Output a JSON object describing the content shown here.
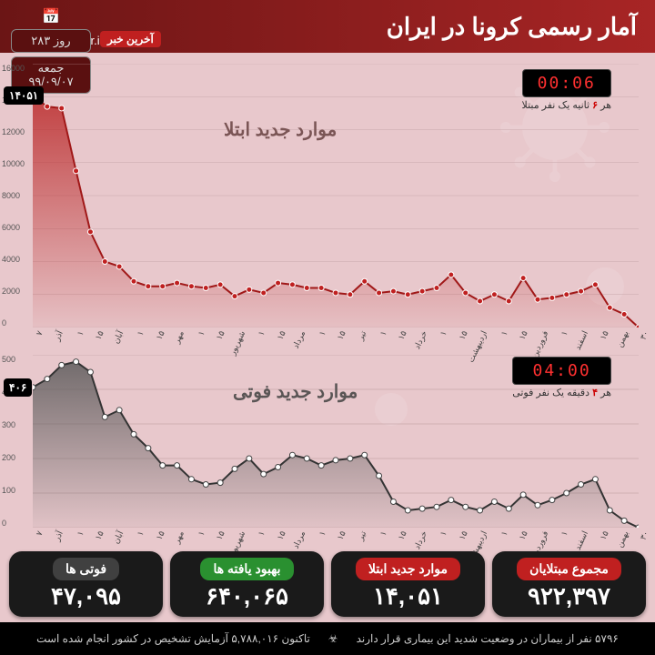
{
  "header": {
    "title": "آمار رسمی کرونا در ایران",
    "site": "Akharinkhabar.ir",
    "logo": "آخرین خبر",
    "day_label": "روز ۲۸۳",
    "weekday": "جمعه",
    "date": "۹۹/۰۹/۰۷"
  },
  "chart1": {
    "title": "موارد جدید ابتلا",
    "title_fontsize": 20,
    "title_color": "#7a5555",
    "type": "area",
    "ylim": [
      0,
      16000
    ],
    "ytick_step": 2000,
    "yticks": [
      "0",
      "2000",
      "4000",
      "6000",
      "8000",
      "10000",
      "12000",
      "14000",
      "16000"
    ],
    "line_color": "#a01818",
    "fill_top": "#b82020",
    "fill_bottom": "rgba(184,32,32,0.15)",
    "marker_color": "#c02020",
    "marker_stroke": "#ffffff",
    "end_value": "۱۴۰۵۱",
    "end_value_num": 14051,
    "background": "#e8c8cc",
    "grid_color": "#c8a8ac",
    "values": [
      0,
      800,
      1200,
      2600,
      2200,
      2000,
      1800,
      1700,
      3000,
      1600,
      2000,
      1600,
      2100,
      3200,
      2400,
      2200,
      2000,
      2200,
      2100,
      2800,
      2000,
      2100,
      2400,
      2400,
      2600,
      2700,
      2100,
      2300,
      1900,
      2600,
      2400,
      2500,
      2700,
      2500,
      2500,
      2800,
      3700,
      4000,
      5800,
      9500,
      13300,
      13400,
      14051
    ],
    "x_labels": [
      "۳۰",
      "بهمن",
      "۱۵",
      "اسفند",
      "۱",
      "فروردین",
      "۱۵",
      "۱",
      "اردیبهشت",
      "۱۵",
      "۱",
      "خرداد",
      "۱۵",
      "۱",
      "تیر",
      "۱۵",
      "۱",
      "مرداد",
      "۱۵",
      "۱",
      "شهریور",
      "۱۵",
      "۱",
      "مهر",
      "۱۵",
      "۱",
      "آبان",
      "۱۵",
      "۱",
      "آذر",
      "۷"
    ],
    "timer": {
      "display": "00:06",
      "caption_pre": "هر",
      "caption_hl": "۶",
      "caption_post": "ثانیه یک نفر مبتلا"
    }
  },
  "chart2": {
    "title": "موارد جدید فوتی",
    "title_fontsize": 20,
    "title_color": "#5a5555",
    "type": "area",
    "ylim": [
      0,
      500
    ],
    "ytick_step": 100,
    "yticks": [
      "0",
      "100",
      "200",
      "300",
      "400",
      "500"
    ],
    "line_color": "#333333",
    "fill_top": "#555555",
    "fill_bottom": "rgba(80,80,80,0.15)",
    "marker_color": "#ffffff",
    "marker_stroke": "#444444",
    "end_value": "۴۰۶",
    "end_value_num": 406,
    "background": "#d8b8bc",
    "grid_color": "#b89898",
    "values": [
      0,
      20,
      50,
      140,
      125,
      100,
      80,
      65,
      95,
      55,
      75,
      50,
      60,
      80,
      60,
      55,
      50,
      75,
      150,
      210,
      200,
      195,
      180,
      200,
      210,
      175,
      155,
      200,
      170,
      130,
      125,
      140,
      180,
      180,
      230,
      270,
      340,
      320,
      450,
      480,
      470,
      430,
      406
    ],
    "timer": {
      "display": "04:00",
      "caption_pre": "هر",
      "caption_hl": "۴",
      "caption_post": "دقیقه یک نفر فوتی"
    }
  },
  "stats": [
    {
      "label": "مجموع مبتلایان",
      "value": "۹۲۲,۳۹۷",
      "label_bg": "#c02020",
      "card_bg": "#1a1a1a"
    },
    {
      "label": "موارد جدید ابتلا",
      "value": "۱۴,۰۵۱",
      "label_bg": "#c02020",
      "card_bg": "#1a1a1a"
    },
    {
      "label": "بهبود یافته ها",
      "value": "۶۴۰,۰۶۵",
      "label_bg": "#2a9030",
      "card_bg": "#1a1a1a"
    },
    {
      "label": "فوتی ها",
      "value": "۴۷,۰۹۵",
      "label_bg": "#404040",
      "card_bg": "#1a1a1a"
    }
  ],
  "footer": {
    "line1": "۵۷۹۶ نفر از بیماران در وضعیت شدید این بیماری قرار دارند",
    "line2": "تاکنون ۵,۷۸۸,۰۱۶ آزمایش تشخیص در کشور انجام شده است"
  }
}
